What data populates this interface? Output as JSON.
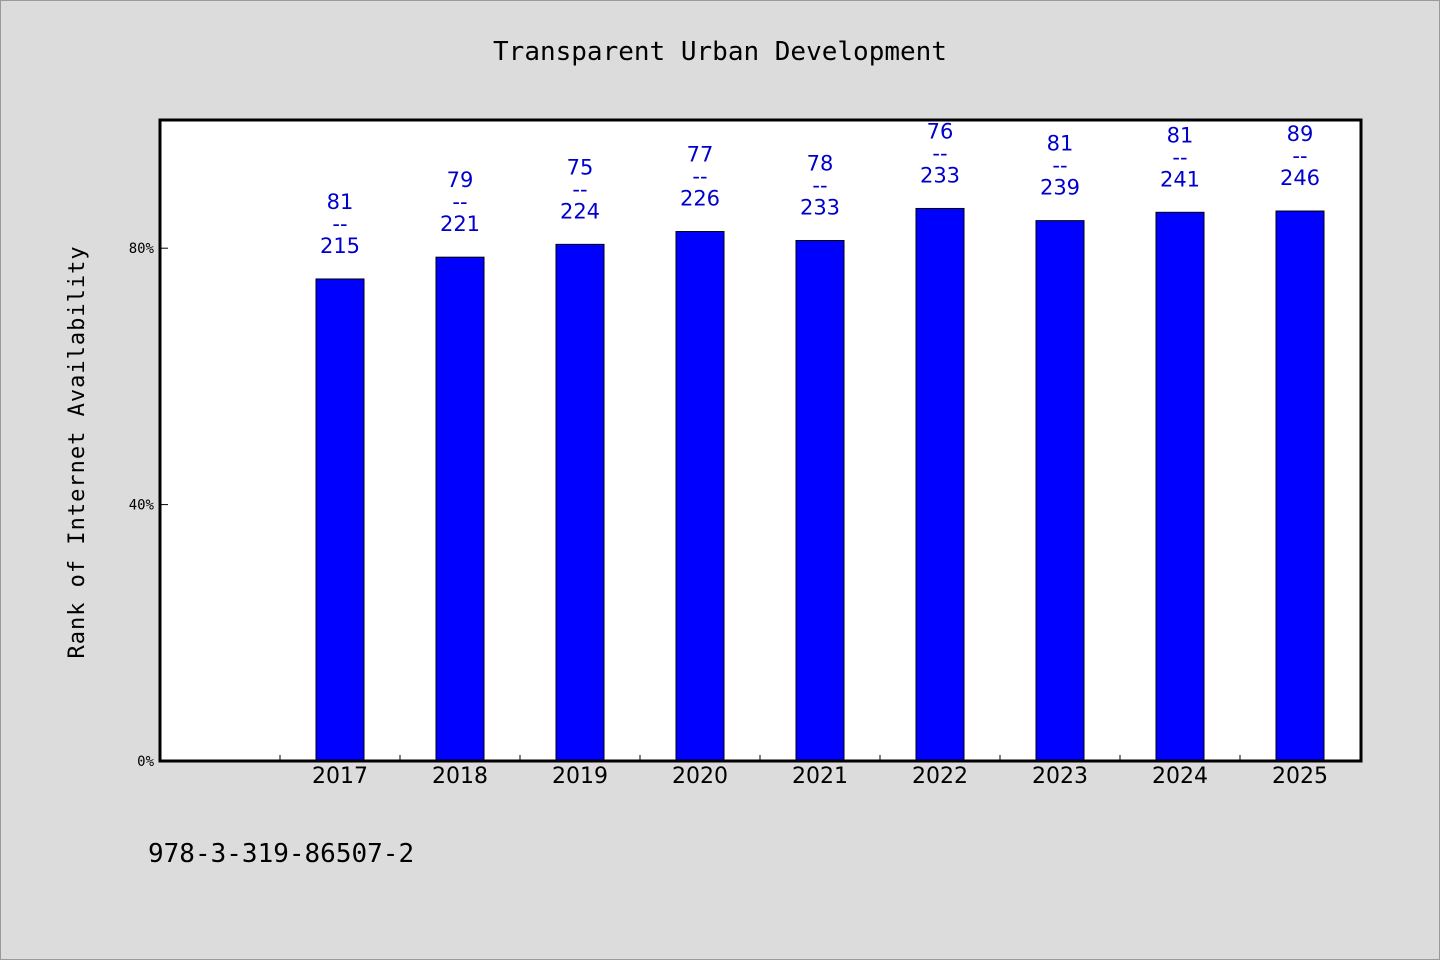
{
  "chart_data": {
    "type": "bar",
    "title": "Transparent Urban Development",
    "xlabel": "",
    "ylabel": "Rank of Internet Availability",
    "y_unit": "%",
    "ylim": [
      0,
      100
    ],
    "yticks": [
      "0%",
      "40%",
      "80%"
    ],
    "categories": [
      "2017",
      "2018",
      "2019",
      "2020",
      "2021",
      "2022",
      "2023",
      "2024",
      "2025"
    ],
    "values": [
      75.2,
      78.6,
      80.6,
      82.6,
      81.2,
      86.2,
      84.3,
      85.6,
      85.8
    ],
    "annotations": [
      {
        "top": "81",
        "sep": "--",
        "bottom": "215"
      },
      {
        "top": "79",
        "sep": "--",
        "bottom": "221"
      },
      {
        "top": "75",
        "sep": "--",
        "bottom": "224"
      },
      {
        "top": "77",
        "sep": "--",
        "bottom": "226"
      },
      {
        "top": "78",
        "sep": "--",
        "bottom": "233"
      },
      {
        "top": "76",
        "sep": "--",
        "bottom": "233"
      },
      {
        "top": "81",
        "sep": "--",
        "bottom": "239"
      },
      {
        "top": "81",
        "sep": "--",
        "bottom": "241"
      },
      {
        "top": "89",
        "sep": "--",
        "bottom": "246"
      }
    ],
    "bar_color": "#0000ff",
    "label_color": "#0000cd",
    "grid": false,
    "legend": "none"
  },
  "footer": {
    "isbn": "978-3-319-86507-2"
  },
  "colors": {
    "background": "#dcdcdc",
    "plot_background": "#ffffff"
  }
}
